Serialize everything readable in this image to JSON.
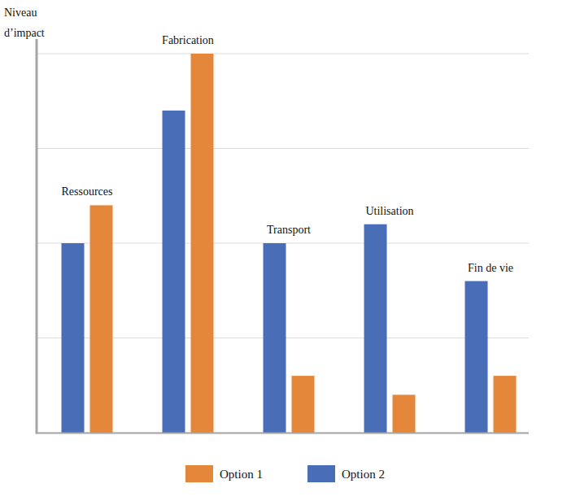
{
  "chart_data": {
    "type": "bar",
    "y_label": "Niveau d’impact",
    "categories": [
      "Ressources",
      "Fabrication",
      "Transport",
      "Utilisation",
      "Fin de vie"
    ],
    "series": [
      {
        "name": "Option 1",
        "color": "#e5873a",
        "values": [
          2.4,
          4.0,
          0.6,
          0.4,
          0.6
        ]
      },
      {
        "name": "Option 2",
        "color": "#4a6db8",
        "values": [
          2.0,
          3.4,
          2.0,
          2.2,
          1.6
        ]
      }
    ],
    "ylim": [
      0,
      4
    ],
    "yticks": [
      0,
      1,
      2,
      3,
      4
    ],
    "grid": true,
    "tick_labels": false,
    "legend": "bottom"
  }
}
